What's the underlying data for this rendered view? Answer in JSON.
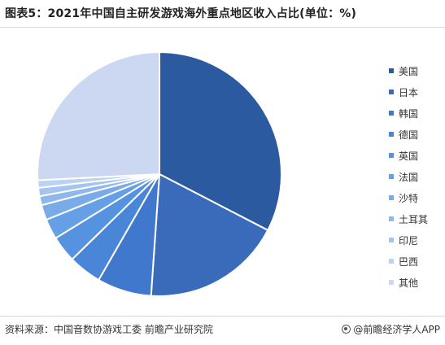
{
  "title": "图表5：2021年中国自主研发游戏海外重点地区收入占比(单位：%)",
  "source": "资料来源：中国音数协游戏工委 前瞻产业研究院",
  "brand": "@前瞻经济学人APP",
  "chart_data": {
    "type": "pie",
    "title": "图表5：2021年中国自主研发游戏海外重点地区收入占比(单位：%)",
    "start_angle_deg": 0,
    "direction": "clockwise",
    "legend_position": "right",
    "slices": [
      {
        "label": "美国",
        "value": 32.6,
        "color": "#2c5aa0"
      },
      {
        "label": "日本",
        "value": 18.5,
        "color": "#3a6bba"
      },
      {
        "label": "韩国",
        "value": 7.2,
        "color": "#3f78cc"
      },
      {
        "label": "德国",
        "value": 4.4,
        "color": "#4a86d8"
      },
      {
        "label": "英国",
        "value": 3.5,
        "color": "#5593e0"
      },
      {
        "label": "法国",
        "value": 2.7,
        "color": "#659fe5"
      },
      {
        "label": "沙特",
        "value": 2.0,
        "color": "#78abe8"
      },
      {
        "label": "土耳其",
        "value": 1.2,
        "color": "#8eb8ec"
      },
      {
        "label": "印尼",
        "value": 1.1,
        "color": "#a4c5ef"
      },
      {
        "label": "巴西",
        "value": 1.0,
        "color": "#bad3f3"
      },
      {
        "label": "其他",
        "value": 25.8,
        "color": "#ccd8f2"
      }
    ]
  }
}
